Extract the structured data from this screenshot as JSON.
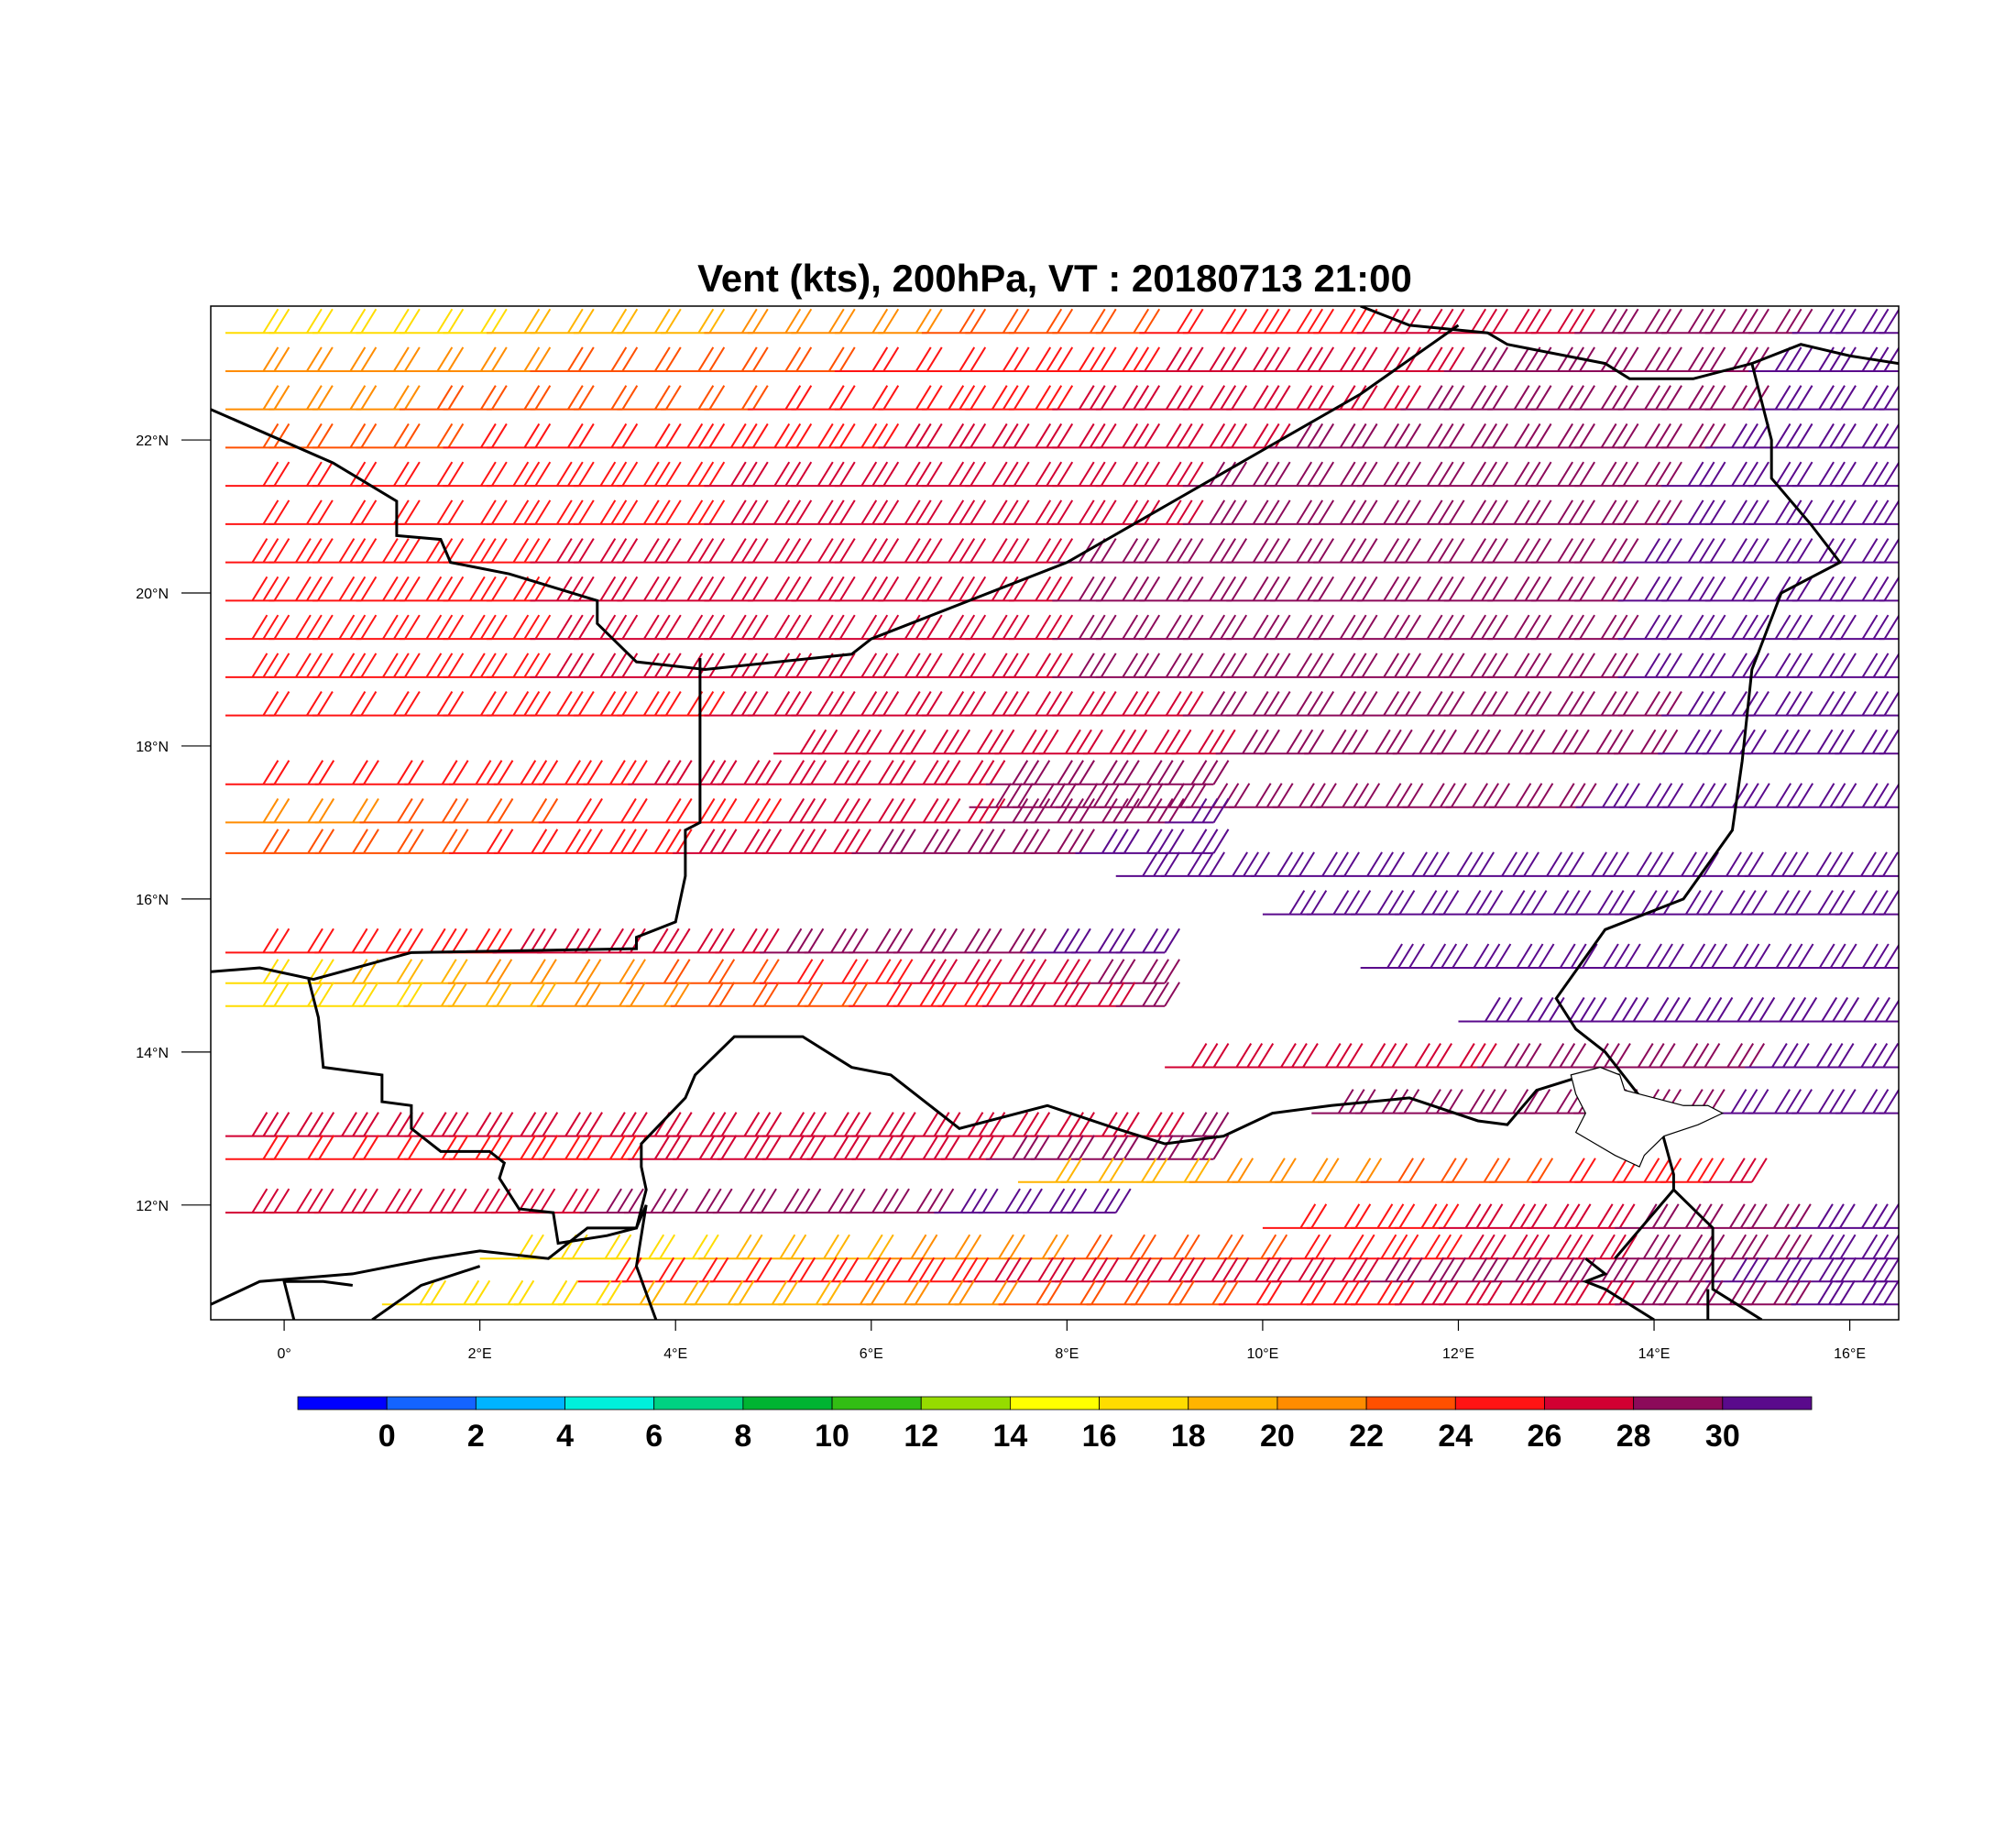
{
  "title": "Vent (kts), 200hPa, VT : 20180713  21:00",
  "map": {
    "lon_range": [
      -0.75,
      16.5
    ],
    "lat_range": [
      10.5,
      23.75
    ],
    "lon_ticks": [
      {
        "value": 0,
        "label": "0°"
      },
      {
        "value": 2,
        "label": "2°E"
      },
      {
        "value": 4,
        "label": "4°E"
      },
      {
        "value": 6,
        "label": "6°E"
      },
      {
        "value": 8,
        "label": "8°E"
      },
      {
        "value": 10,
        "label": "10°E"
      },
      {
        "value": 12,
        "label": "12°E"
      },
      {
        "value": 14,
        "label": "14°E"
      },
      {
        "value": 16,
        "label": "16°E"
      }
    ],
    "lat_ticks": [
      {
        "value": 12,
        "label": "12°N"
      },
      {
        "value": 14,
        "label": "14°N"
      },
      {
        "value": 16,
        "label": "16°N"
      },
      {
        "value": 18,
        "label": "18°N"
      },
      {
        "value": 20,
        "label": "20°N"
      },
      {
        "value": 22,
        "label": "22°N"
      }
    ],
    "borders": [
      [
        [
          -0.75,
          22.4
        ],
        [
          0.5,
          21.7
        ],
        [
          1.15,
          21.2
        ],
        [
          1.15,
          20.75
        ],
        [
          1.6,
          20.7
        ],
        [
          1.7,
          20.4
        ],
        [
          2.3,
          20.25
        ],
        [
          3.2,
          19.9
        ],
        [
          3.2,
          19.6
        ],
        [
          3.6,
          19.1
        ],
        [
          4.3,
          19.0
        ],
        [
          5.8,
          19.2
        ],
        [
          6.0,
          19.4
        ],
        [
          8.0,
          20.4
        ],
        [
          9.5,
          21.5
        ],
        [
          11.0,
          22.6
        ],
        [
          12.0,
          23.5
        ]
      ],
      [
        [
          -0.75,
          15.05
        ],
        [
          -0.25,
          15.1
        ],
        [
          0.3,
          14.95
        ],
        [
          1.3,
          15.3
        ],
        [
          3.6,
          15.35
        ],
        [
          3.6,
          15.5
        ],
        [
          4.0,
          15.7
        ],
        [
          4.1,
          16.3
        ],
        [
          4.1,
          16.9
        ],
        [
          4.25,
          17.0
        ],
        [
          4.25,
          18.5
        ],
        [
          4.25,
          19.15
        ]
      ],
      [
        [
          0.25,
          14.95
        ],
        [
          0.35,
          14.45
        ],
        [
          0.4,
          13.8
        ],
        [
          1.0,
          13.7
        ],
        [
          1.0,
          13.35
        ],
        [
          1.3,
          13.3
        ],
        [
          1.3,
          13.0
        ],
        [
          1.6,
          12.7
        ],
        [
          2.1,
          12.7
        ],
        [
          2.25,
          12.55
        ],
        [
          2.2,
          12.35
        ],
        [
          2.4,
          11.95
        ],
        [
          2.75,
          11.9
        ],
        [
          2.8,
          11.5
        ],
        [
          3.3,
          11.6
        ],
        [
          3.6,
          11.7
        ],
        [
          3.7,
          12.2
        ],
        [
          3.65,
          12.5
        ],
        [
          3.65,
          12.8
        ],
        [
          4.1,
          13.4
        ],
        [
          4.2,
          13.7
        ],
        [
          4.6,
          14.2
        ],
        [
          5.3,
          14.2
        ],
        [
          5.8,
          13.8
        ],
        [
          6.2,
          13.7
        ],
        [
          6.6,
          13.3
        ],
        [
          6.9,
          13.0
        ],
        [
          7.8,
          13.3
        ],
        [
          8.5,
          13.0
        ],
        [
          9.0,
          12.8
        ],
        [
          9.6,
          12.9
        ],
        [
          10.1,
          13.2
        ],
        [
          10.7,
          13.3
        ],
        [
          11.5,
          13.4
        ],
        [
          12.2,
          13.1
        ],
        [
          12.5,
          13.05
        ],
        [
          12.8,
          13.5
        ],
        [
          13.3,
          13.7
        ],
        [
          13.65,
          13.7
        ]
      ],
      [
        [
          11.0,
          23.75
        ],
        [
          11.5,
          23.5
        ],
        [
          12.3,
          23.4
        ],
        [
          12.5,
          23.25
        ],
        [
          13.5,
          23.0
        ],
        [
          13.75,
          22.8
        ],
        [
          14.4,
          22.8
        ],
        [
          15.0,
          23.0
        ],
        [
          15.5,
          23.25
        ],
        [
          16.0,
          23.1
        ],
        [
          16.5,
          23.0
        ]
      ],
      [
        [
          15.0,
          23.0
        ],
        [
          15.2,
          22.0
        ],
        [
          15.2,
          21.5
        ],
        [
          15.6,
          20.9
        ],
        [
          15.9,
          20.4
        ],
        [
          15.3,
          20.0
        ],
        [
          15.0,
          19.0
        ],
        [
          14.9,
          17.8
        ],
        [
          14.8,
          16.9
        ],
        [
          14.3,
          16.0
        ],
        [
          13.5,
          15.6
        ],
        [
          13.0,
          14.7
        ],
        [
          13.2,
          14.3
        ],
        [
          13.5,
          14.0
        ],
        [
          14.05,
          13.1
        ],
        [
          14.2,
          12.4
        ],
        [
          14.2,
          12.2
        ],
        [
          14.6,
          11.7
        ],
        [
          14.6,
          10.9
        ],
        [
          15.1,
          10.5
        ]
      ],
      [
        [
          -0.75,
          10.7
        ],
        [
          -0.25,
          11.0
        ],
        [
          0.7,
          11.1
        ],
        [
          1.5,
          11.3
        ],
        [
          2.0,
          11.4
        ],
        [
          2.7,
          11.3
        ],
        [
          3.1,
          11.7
        ],
        [
          3.6,
          11.7
        ],
        [
          3.7,
          12.0
        ],
        [
          3.6,
          11.2
        ],
        [
          3.8,
          10.5
        ]
      ],
      [
        [
          0.9,
          10.5
        ],
        [
          1.4,
          10.95
        ],
        [
          2.0,
          11.2
        ]
      ],
      [
        [
          0.1,
          10.5
        ],
        [
          0.0,
          11.0
        ],
        [
          0.4,
          11.0
        ],
        [
          0.7,
          10.95
        ]
      ],
      [
        [
          14.0,
          10.5
        ],
        [
          13.5,
          10.9
        ],
        [
          13.3,
          11.0
        ],
        [
          13.5,
          11.1
        ],
        [
          13.3,
          11.3
        ]
      ],
      [
        [
          13.6,
          11.3
        ],
        [
          14.2,
          12.2
        ]
      ],
      [
        [
          14.55,
          10.5
        ],
        [
          14.55,
          10.9
        ]
      ]
    ],
    "lake_chad": [
      [
        13.15,
        13.7
      ],
      [
        13.45,
        13.8
      ],
      [
        13.65,
        13.7
      ],
      [
        13.7,
        13.5
      ],
      [
        14.0,
        13.4
      ],
      [
        14.3,
        13.3
      ],
      [
        14.55,
        13.3
      ],
      [
        14.7,
        13.2
      ],
      [
        14.45,
        13.05
      ],
      [
        14.1,
        12.9
      ],
      [
        13.9,
        12.65
      ],
      [
        13.85,
        12.5
      ],
      [
        13.6,
        12.65
      ],
      [
        13.4,
        12.8
      ],
      [
        13.2,
        12.95
      ],
      [
        13.3,
        13.2
      ],
      [
        13.2,
        13.45
      ]
    ]
  },
  "wind_barbs": {
    "units": "kts",
    "level": "200hPa",
    "rows": [
      {
        "lat": 23.4,
        "lon_start": -0.6,
        "lon_end": 16.3,
        "speed_start": 16,
        "speed_end": 31,
        "direction": "from-east"
      },
      {
        "lat": 22.9,
        "lon_start": -0.6,
        "lon_end": 16.3,
        "speed_start": 20,
        "speed_end": 31,
        "direction": "from-east"
      },
      {
        "lat": 22.4,
        "lon_start": -0.6,
        "lon_end": 16.3,
        "speed_start": 21,
        "speed_end": 31,
        "direction": "from-east"
      },
      {
        "lat": 21.9,
        "lon_start": -0.6,
        "lon_end": 16.3,
        "speed_start": 23,
        "speed_end": 31,
        "direction": "from-east"
      },
      {
        "lat": 21.4,
        "lon_start": -0.6,
        "lon_end": 16.3,
        "speed_start": 24,
        "speed_end": 31,
        "direction": "from-east"
      },
      {
        "lat": 20.9,
        "lon_start": -0.6,
        "lon_end": 16.3,
        "speed_start": 24,
        "speed_end": 31,
        "direction": "from-east"
      },
      {
        "lat": 20.4,
        "lon_start": -0.6,
        "lon_end": 16.3,
        "speed_start": 25,
        "speed_end": 31,
        "direction": "from-east"
      },
      {
        "lat": 19.9,
        "lon_start": -0.6,
        "lon_end": 16.3,
        "speed_start": 25,
        "speed_end": 31,
        "direction": "from-east"
      },
      {
        "lat": 19.4,
        "lon_start": -0.6,
        "lon_end": 16.3,
        "speed_start": 25,
        "speed_end": 31,
        "direction": "from-east"
      },
      {
        "lat": 18.9,
        "lon_start": -0.6,
        "lon_end": 16.3,
        "speed_start": 25,
        "speed_end": 31,
        "direction": "from-east"
      },
      {
        "lat": 18.4,
        "lon_start": -0.6,
        "lon_end": 16.3,
        "speed_start": 24,
        "speed_end": 31,
        "direction": "from-east"
      },
      {
        "lat": 17.9,
        "lon_start": 5.0,
        "lon_end": 16.3,
        "speed_start": 26,
        "speed_end": 31,
        "direction": "from-east"
      },
      {
        "lat": 17.5,
        "lon_start": -0.6,
        "lon_end": 9.0,
        "speed_start": 24,
        "speed_end": 29,
        "direction": "from-east"
      },
      {
        "lat": 17.2,
        "lon_start": 7.0,
        "lon_end": 16.3,
        "speed_start": 28,
        "speed_end": 31,
        "direction": "from-east"
      },
      {
        "lat": 17.0,
        "lon_start": -0.6,
        "lon_end": 9.0,
        "speed_start": 21,
        "speed_end": 30,
        "direction": "from-east"
      },
      {
        "lat": 16.6,
        "lon_start": -0.6,
        "lon_end": 9.0,
        "speed_start": 22,
        "speed_end": 31,
        "direction": "from-east"
      },
      {
        "lat": 16.3,
        "lon_start": 8.5,
        "lon_end": 16.3,
        "speed_start": 30,
        "speed_end": 31,
        "direction": "from-east"
      },
      {
        "lat": 15.8,
        "lon_start": 10.0,
        "lon_end": 16.3,
        "speed_start": 30,
        "speed_end": 31,
        "direction": "from-east"
      },
      {
        "lat": 15.3,
        "lon_start": -0.6,
        "lon_end": 8.5,
        "speed_start": 24,
        "speed_end": 31,
        "direction": "from-east"
      },
      {
        "lat": 15.1,
        "lon_start": 11.0,
        "lon_end": 16.3,
        "speed_start": 30,
        "speed_end": 31,
        "direction": "from-east"
      },
      {
        "lat": 14.9,
        "lon_start": -0.6,
        "lon_end": 8.5,
        "speed_start": 17,
        "speed_end": 29,
        "direction": "from-east"
      },
      {
        "lat": 14.6,
        "lon_start": -0.6,
        "lon_end": 8.5,
        "speed_start": 16,
        "speed_end": 28,
        "direction": "from-east"
      },
      {
        "lat": 14.4,
        "lon_start": 12.0,
        "lon_end": 16.3,
        "speed_start": 30,
        "speed_end": 31,
        "direction": "from-east"
      },
      {
        "lat": 13.8,
        "lon_start": 9.0,
        "lon_end": 16.3,
        "speed_start": 26,
        "speed_end": 31,
        "direction": "from-east"
      },
      {
        "lat": 13.2,
        "lon_start": 10.5,
        "lon_end": 16.3,
        "speed_start": 28,
        "speed_end": 31,
        "direction": "from-east"
      },
      {
        "lat": 12.9,
        "lon_start": -0.6,
        "lon_end": 9.0,
        "speed_start": 26,
        "speed_end": 28,
        "direction": "from-east"
      },
      {
        "lat": 12.6,
        "lon_start": -0.6,
        "lon_end": 9.0,
        "speed_start": 24,
        "speed_end": 29,
        "direction": "from-east"
      },
      {
        "lat": 12.3,
        "lon_start": 7.5,
        "lon_end": 14.5,
        "speed_start": 18,
        "speed_end": 26,
        "direction": "from-east"
      },
      {
        "lat": 11.9,
        "lon_start": -0.6,
        "lon_end": 8.0,
        "speed_start": 26,
        "speed_end": 31,
        "direction": "from-east"
      },
      {
        "lat": 11.7,
        "lon_start": 10.0,
        "lon_end": 16.3,
        "speed_start": 24,
        "speed_end": 31,
        "direction": "from-east"
      },
      {
        "lat": 11.3,
        "lon_start": 2.0,
        "lon_end": 16.3,
        "speed_start": 16,
        "speed_end": 31,
        "direction": "from-east"
      },
      {
        "lat": 11.0,
        "lon_start": 3.0,
        "lon_end": 16.3,
        "speed_start": 24,
        "speed_end": 31,
        "direction": "from-east"
      },
      {
        "lat": 10.7,
        "lon_start": 1.0,
        "lon_end": 16.3,
        "speed_start": 16,
        "speed_end": 31,
        "direction": "from-east"
      }
    ]
  },
  "colorbar": {
    "colors": [
      "#0000ff",
      "#1464ff",
      "#00b4ff",
      "#00f0dc",
      "#00d282",
      "#00b432",
      "#32be14",
      "#96dc00",
      "#ffff00",
      "#ffdc00",
      "#ffb400",
      "#ff8c00",
      "#ff5000",
      "#ff1414",
      "#d20032",
      "#8c0a5a",
      "#5a0a8c"
    ],
    "labels": [
      "0",
      "2",
      "4",
      "6",
      "8",
      "10",
      "12",
      "14",
      "16",
      "18",
      "20",
      "22",
      "24",
      "26",
      "28",
      "30"
    ]
  }
}
